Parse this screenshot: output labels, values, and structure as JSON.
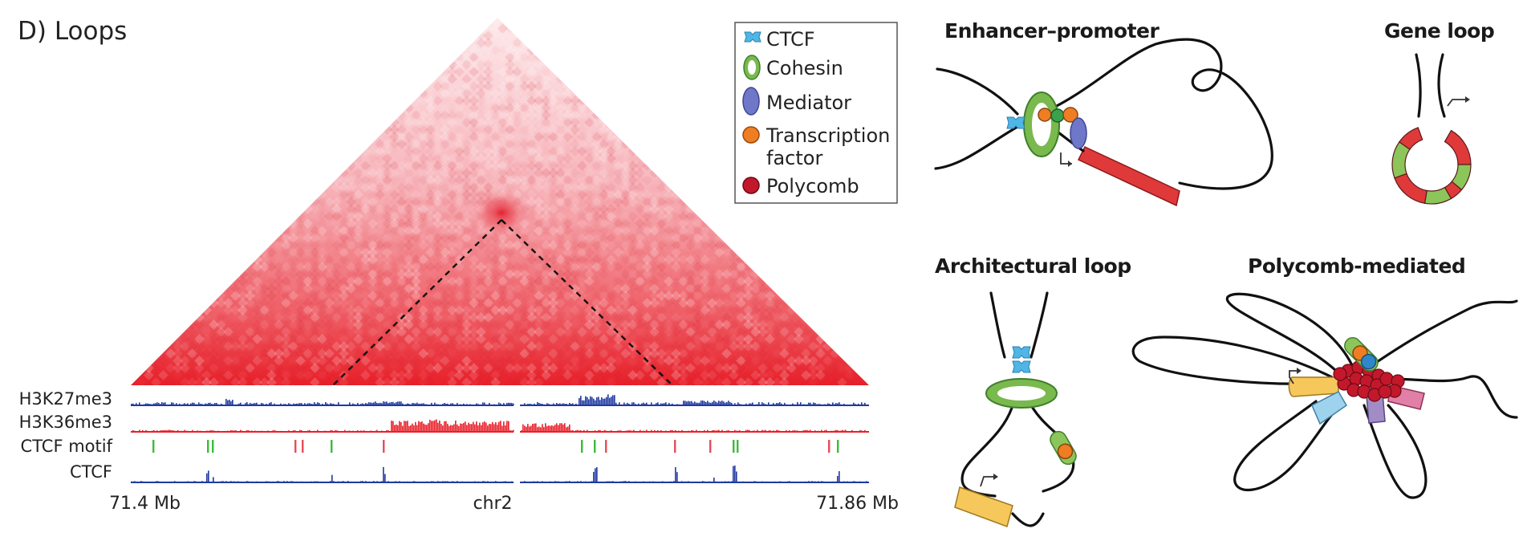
{
  "panel_title": "D) Loops",
  "legend": {
    "items": [
      {
        "label": "CTCF",
        "icon": "ctcf-icon",
        "color": "#4fb6e6"
      },
      {
        "label": "Cohesin",
        "icon": "cohesin-ring-icon",
        "color": "#79b94e"
      },
      {
        "label": "Mediator",
        "icon": "mediator-ellipse-icon",
        "color": "#6f77c8"
      },
      {
        "label": "Transcription",
        "label2": "factor",
        "icon": "tf-dot-icon",
        "color": "#ef7d22"
      },
      {
        "label": "Polycomb",
        "icon": "polycomb-dot-icon",
        "color": "#c3182b"
      }
    ]
  },
  "tracks": {
    "h3k27me3": {
      "label": "H3K27me3",
      "color": "#1f3aa0"
    },
    "h3k36me3": {
      "label": "H3K36me3",
      "color": "#e8202a"
    },
    "ctcf_motif": {
      "label": "CTCF motif",
      "forward_color": "#3dbb3a",
      "reverse_color": "#e74c5a"
    },
    "ctcf": {
      "label": "CTCF",
      "color": "#1f3aa0"
    }
  },
  "axis": {
    "start": "71.4 Mb",
    "chrom": "chr2",
    "end": "71.86 Mb"
  },
  "diagrams": {
    "enhancer_promoter": "Enhancer–promoter",
    "gene_loop": "Gene loop",
    "architectural_loop": "Architectural loop",
    "polycomb_mediated": "Polycomb-mediated"
  },
  "colors": {
    "heatmap_high": "#e8202a",
    "gene_red": "#e0393a",
    "gene_green": "#8cc55a",
    "gene_yellow": "#f6c75a",
    "gene_lightblue": "#9ed3ee",
    "gene_purple": "#a28cc6",
    "gene_pink": "#e17fa6"
  }
}
